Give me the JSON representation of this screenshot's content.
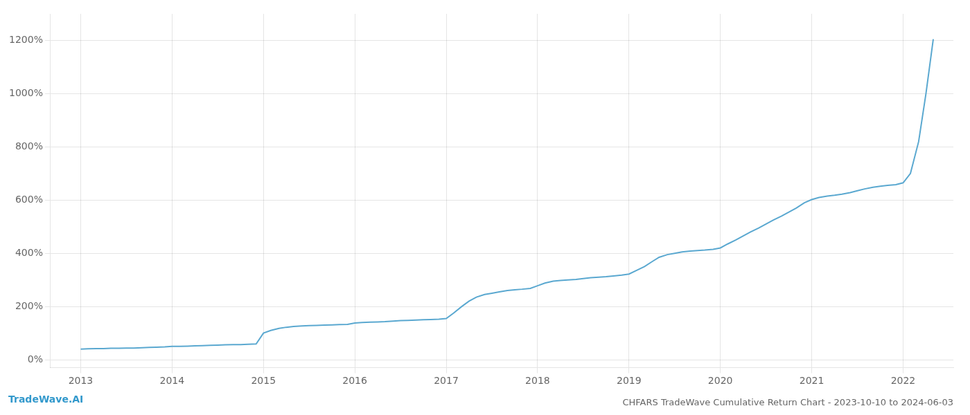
{
  "chart_data": {
    "type": "line",
    "title": "CHFARS TradeWave Cumulative Return Chart - 2023-10-10 to 2024-06-03",
    "annotations": [
      {
        "text": "TradeWave.AI",
        "color": "#3399cc"
      }
    ],
    "x": [
      2013.0,
      2013.08,
      2013.17,
      2013.25,
      2013.33,
      2013.42,
      2013.5,
      2013.58,
      2013.67,
      2013.75,
      2013.83,
      2013.92,
      2014.0,
      2014.08,
      2014.17,
      2014.25,
      2014.33,
      2014.42,
      2014.5,
      2014.58,
      2014.67,
      2014.75,
      2014.83,
      2014.92,
      2015.0,
      2015.08,
      2015.17,
      2015.25,
      2015.33,
      2015.42,
      2015.5,
      2015.58,
      2015.67,
      2015.75,
      2015.83,
      2015.92,
      2016.0,
      2016.08,
      2016.17,
      2016.25,
      2016.33,
      2016.42,
      2016.5,
      2016.58,
      2016.67,
      2016.75,
      2016.83,
      2016.92,
      2017.0,
      2017.08,
      2017.17,
      2017.25,
      2017.33,
      2017.42,
      2017.5,
      2017.58,
      2017.67,
      2017.75,
      2017.83,
      2017.92,
      2018.0,
      2018.08,
      2018.17,
      2018.25,
      2018.33,
      2018.42,
      2018.5,
      2018.58,
      2018.67,
      2018.75,
      2018.83,
      2018.92,
      2019.0,
      2019.08,
      2019.17,
      2019.25,
      2019.33,
      2019.42,
      2019.5,
      2019.58,
      2019.67,
      2019.75,
      2019.83,
      2019.92,
      2020.0,
      2020.08,
      2020.17,
      2020.25,
      2020.33,
      2020.42,
      2020.5,
      2020.58,
      2020.67,
      2020.75,
      2020.83,
      2020.92,
      2021.0,
      2021.08,
      2021.17,
      2021.25,
      2021.33,
      2021.42,
      2021.5,
      2021.58,
      2021.67,
      2021.75,
      2021.83,
      2021.92,
      2022.0,
      2022.08,
      2022.17,
      2022.25,
      2022.33
    ],
    "values": [
      40,
      41,
      42,
      42,
      43,
      43,
      44,
      44,
      45,
      46,
      47,
      48,
      50,
      50,
      51,
      52,
      53,
      54,
      55,
      56,
      57,
      57,
      58,
      59,
      100,
      110,
      118,
      122,
      125,
      127,
      128,
      129,
      130,
      131,
      132,
      133,
      138,
      140,
      141,
      142,
      143,
      145,
      147,
      148,
      149,
      150,
      151,
      152,
      155,
      175,
      200,
      220,
      235,
      245,
      250,
      255,
      260,
      263,
      265,
      268,
      278,
      288,
      295,
      298,
      300,
      302,
      305,
      308,
      310,
      312,
      315,
      318,
      322,
      335,
      350,
      368,
      385,
      395,
      400,
      405,
      408,
      410,
      412,
      415,
      420,
      435,
      450,
      465,
      480,
      495,
      510,
      525,
      540,
      555,
      570,
      590,
      602,
      610,
      615,
      618,
      622,
      628,
      635,
      642,
      648,
      652,
      655,
      658,
      665,
      700,
      820,
      1000,
      1205
    ],
    "color": "#5aa8d0",
    "xlim": [
      2012.67,
      2022.55
    ],
    "xticks": [
      2013,
      2014,
      2015,
      2016,
      2017,
      2018,
      2019,
      2020,
      2021,
      2022
    ],
    "ylim": [
      -30,
      1300
    ],
    "yticks": [
      {
        "value": 0,
        "label": "0%"
      },
      {
        "value": 200,
        "label": "200%"
      },
      {
        "value": 400,
        "label": "400%"
      },
      {
        "value": 600,
        "label": "600%"
      },
      {
        "value": 800,
        "label": "800%"
      },
      {
        "value": 1000,
        "label": "1000%"
      },
      {
        "value": 1200,
        "label": "1200%"
      }
    ],
    "grid": true
  }
}
